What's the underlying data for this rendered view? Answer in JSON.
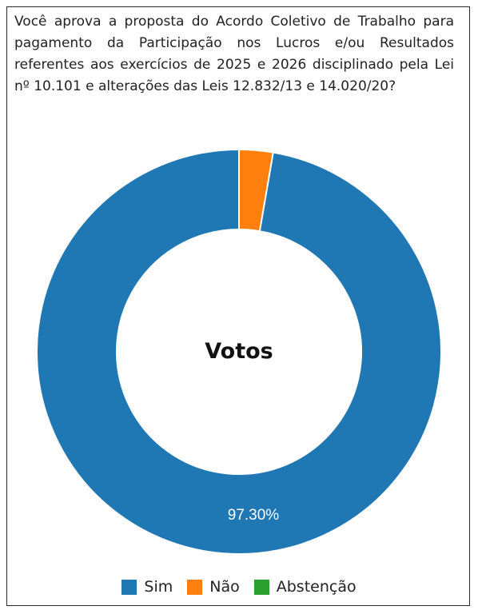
{
  "question": {
    "lines": [
      "Você aprova a proposta do Acordo Coletivo de Trabalho para",
      "pagamento da Participação nos Lucros e/ou Resultados",
      "referentes aos exercícios de 2025 e 2026 disciplinado pela Lei",
      "nº 10.101 e alterações das Leis 12.832/13 e 14.020/20?"
    ]
  },
  "chart_data": {
    "type": "pie",
    "title": "Votos",
    "categories": [
      "Sim",
      "Não",
      "Abstenção"
    ],
    "values": [
      97.3,
      2.7,
      0
    ],
    "colors": [
      "#1f77b4",
      "#ff7f0e",
      "#2ca02c"
    ],
    "data_labels": [
      "97.30%",
      "",
      ""
    ],
    "legend": "bottom"
  }
}
